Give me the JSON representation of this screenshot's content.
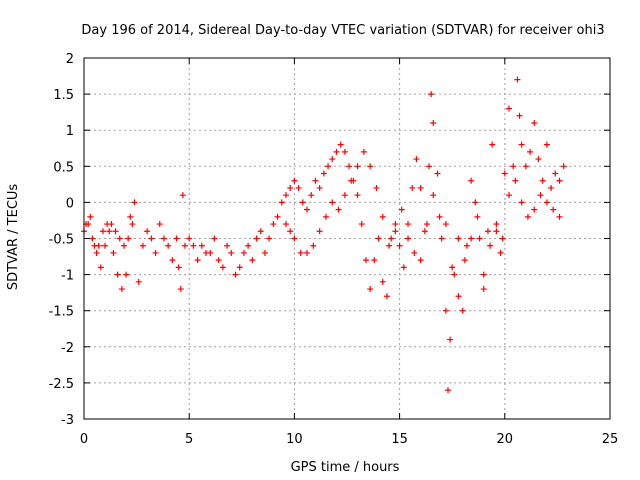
{
  "chart_data": {
    "type": "scatter",
    "title": "Day 196 of 2014, Sidereal Day-to-day VTEC variation (SDTVAR) for receiver ohi3",
    "xlabel": "GPS time / hours",
    "ylabel": "SDTVAR / TECUs",
    "xlim": [
      0,
      25
    ],
    "ylim": [
      -3,
      2
    ],
    "xticks": [
      0,
      5,
      10,
      15,
      20,
      25
    ],
    "yticks": [
      -3,
      -2.5,
      -2,
      -1.5,
      -1,
      -0.5,
      0,
      0.5,
      1,
      1.5,
      2
    ],
    "grid": true,
    "marker": "+",
    "series": [
      {
        "name": "SDTVAR",
        "color": "#ff0000",
        "x": [
          0.0,
          0.2,
          0.4,
          0.6,
          0.8,
          1.0,
          1.2,
          1.4,
          1.6,
          1.8,
          2.0,
          2.2,
          2.4,
          0.1,
          0.3,
          0.5,
          0.7,
          0.9,
          1.1,
          1.3,
          1.5,
          1.7,
          1.9,
          2.1,
          2.3,
          2.6,
          2.8,
          3.0,
          3.2,
          3.4,
          3.6,
          3.8,
          4.0,
          4.2,
          4.4,
          4.6,
          4.7,
          4.5,
          4.8,
          5.0,
          5.2,
          5.4,
          5.6,
          5.8,
          6.0,
          6.2,
          6.4,
          6.6,
          6.8,
          7.0,
          7.2,
          7.4,
          7.6,
          7.8,
          8.0,
          8.2,
          8.4,
          8.6,
          8.8,
          9.0,
          9.2,
          9.4,
          9.6,
          9.8,
          10.0,
          10.2,
          10.4,
          10.6,
          10.8,
          11.0,
          11.2,
          11.4,
          11.6,
          11.8,
          12.0,
          12.2,
          12.4,
          12.6,
          12.8,
          13.0,
          13.2,
          13.4,
          13.6,
          13.8,
          14.0,
          14.2,
          14.4,
          14.6,
          14.8,
          15.0,
          15.2,
          15.4,
          15.6,
          15.8,
          16.0,
          16.2,
          16.4,
          16.5,
          16.6,
          16.8,
          17.0,
          17.2,
          17.3,
          17.4,
          17.6,
          17.8,
          18.0,
          18.2,
          18.4,
          18.6,
          18.8,
          19.0,
          19.2,
          19.4,
          19.6,
          19.8,
          20.0,
          20.2,
          20.4,
          20.6,
          20.7,
          20.8,
          21.0,
          21.2,
          21.4,
          21.6,
          21.8,
          22.0,
          22.2,
          22.4,
          22.6,
          22.8,
          9.6,
          9.8,
          10.0,
          10.3,
          10.6,
          10.9,
          11.2,
          11.5,
          11.8,
          12.1,
          12.4,
          12.7,
          13.0,
          13.3,
          13.6,
          13.9,
          14.2,
          14.5,
          14.8,
          15.1,
          15.4,
          15.7,
          16.0,
          16.3,
          16.6,
          16.9,
          17.2,
          17.5,
          17.8,
          18.1,
          18.4,
          18.7,
          19.0,
          19.3,
          19.6,
          19.9,
          20.2,
          20.5,
          20.8,
          21.1,
          21.4,
          21.7,
          22.0,
          22.3,
          22.6
        ],
        "y": [
          -0.4,
          -0.3,
          -0.5,
          -0.7,
          -0.9,
          -0.6,
          -0.4,
          -0.7,
          -1.0,
          -1.2,
          -1.0,
          -0.2,
          0.0,
          -0.3,
          -0.2,
          -0.6,
          -0.6,
          -0.4,
          -0.3,
          -0.3,
          -0.4,
          -0.5,
          -0.6,
          -0.5,
          -0.3,
          -1.1,
          -0.6,
          -0.4,
          -0.5,
          -0.7,
          -0.3,
          -0.5,
          -0.6,
          -0.8,
          -0.5,
          -1.2,
          0.1,
          -0.9,
          -0.6,
          -0.5,
          -0.6,
          -0.8,
          -0.6,
          -0.7,
          -0.7,
          -0.5,
          -0.8,
          -0.9,
          -0.6,
          -0.7,
          -1.0,
          -0.9,
          -0.7,
          -0.6,
          -0.8,
          -0.5,
          -0.4,
          -0.7,
          -0.5,
          -0.3,
          -0.2,
          0.0,
          0.1,
          0.2,
          0.3,
          0.2,
          0.0,
          -0.1,
          0.1,
          0.3,
          0.2,
          0.4,
          0.5,
          0.6,
          0.7,
          0.8,
          0.7,
          0.5,
          0.3,
          0.1,
          -0.3,
          -0.8,
          -1.2,
          -0.8,
          -0.5,
          -1.1,
          -1.3,
          -0.5,
          -0.3,
          -0.6,
          -0.9,
          -0.3,
          0.2,
          0.6,
          0.2,
          -0.4,
          0.5,
          1.5,
          1.1,
          0.4,
          -0.5,
          -1.5,
          -2.6,
          -1.9,
          -1.0,
          -0.5,
          -1.5,
          -0.6,
          0.3,
          0.0,
          -0.5,
          -1.2,
          -0.4,
          0.8,
          -0.4,
          -0.7,
          0.4,
          1.3,
          0.5,
          1.7,
          1.2,
          0.8,
          0.5,
          0.7,
          1.1,
          0.6,
          0.3,
          0.8,
          0.2,
          0.4,
          0.3,
          0.5,
          -0.3,
          -0.4,
          -0.5,
          -0.7,
          -0.7,
          -0.6,
          -0.4,
          -0.2,
          0.0,
          -0.1,
          0.1,
          0.3,
          0.5,
          0.7,
          0.5,
          0.2,
          -0.2,
          -0.6,
          -0.4,
          -0.1,
          -0.5,
          -0.7,
          -0.8,
          -0.3,
          0.1,
          -0.2,
          -0.3,
          -0.9,
          -1.3,
          -0.8,
          -0.5,
          -0.2,
          -1.0,
          -0.6,
          -0.3,
          -0.5,
          0.1,
          0.3,
          0.0,
          -0.2,
          -0.1,
          0.1,
          0.0,
          -0.1,
          -0.2
        ]
      }
    ]
  }
}
